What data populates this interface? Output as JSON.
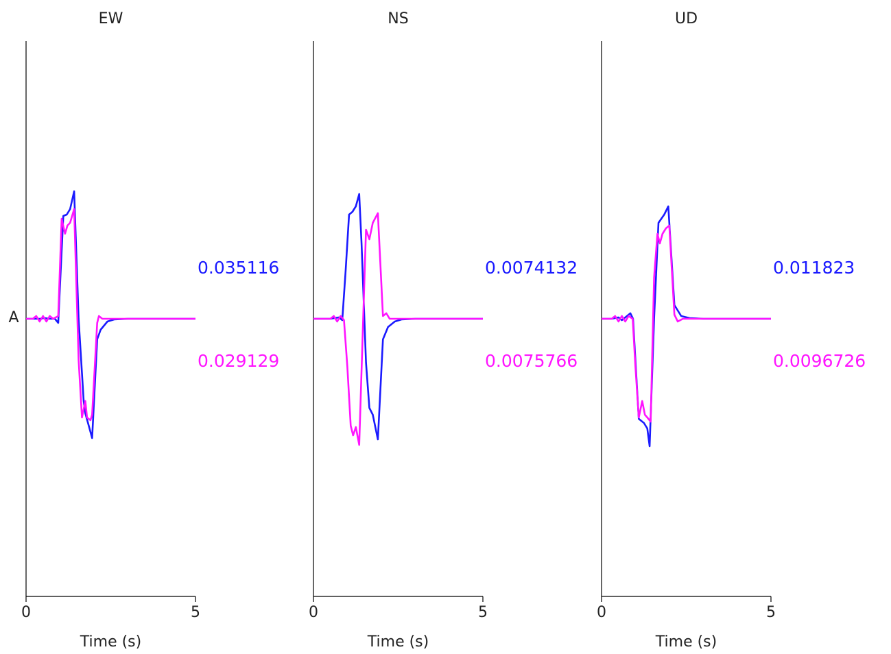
{
  "colors": {
    "series_a": "#1a1aff",
    "series_b": "#ff14ff",
    "axis": "#000000",
    "text": "#222222"
  },
  "station_label": "A",
  "chart_data": [
    {
      "type": "line",
      "title": "EW",
      "xlabel": "Time (s)",
      "ylabel": "",
      "xlim": [
        0,
        5
      ],
      "ylim": [
        -1,
        1
      ],
      "x_ticks": [
        "0",
        "5"
      ],
      "grid": false,
      "annotations": [
        "0.035116",
        "0.029129"
      ],
      "series": [
        {
          "color": "#1a1aff",
          "x": [
            0,
            0.2,
            0.4,
            0.55,
            0.7,
            0.85,
            0.95,
            1.1,
            1.2,
            1.3,
            1.42,
            1.55,
            1.7,
            1.75,
            1.85,
            1.95,
            2.1,
            2.2,
            2.4,
            2.6,
            3,
            5
          ],
          "y": [
            0,
            0,
            0,
            0.005,
            0,
            0,
            -0.03,
            0.75,
            0.76,
            0.8,
            0.93,
            0,
            -0.6,
            -0.69,
            -0.78,
            -0.87,
            -0.15,
            -0.08,
            -0.02,
            -0.005,
            0,
            0
          ]
        },
        {
          "color": "#ff14ff",
          "x": [
            0,
            0.2,
            0.3,
            0.4,
            0.5,
            0.6,
            0.7,
            0.8,
            0.95,
            1.05,
            1.15,
            1.22,
            1.3,
            1.42,
            1.55,
            1.65,
            1.75,
            1.8,
            1.9,
            1.95,
            2.1,
            2.15,
            2.25,
            2.4,
            3,
            5
          ],
          "y": [
            0,
            0,
            0.02,
            -0.02,
            0.02,
            -0.02,
            0.02,
            0,
            0.02,
            0.73,
            0.62,
            0.68,
            0.7,
            0.8,
            -0.3,
            -0.72,
            -0.6,
            -0.72,
            -0.74,
            -0.7,
            -0.03,
            0.02,
            0,
            0,
            0,
            0
          ]
        }
      ]
    },
    {
      "type": "line",
      "title": "NS",
      "xlabel": "Time (s)",
      "ylabel": "",
      "xlim": [
        0,
        5
      ],
      "ylim": [
        -1,
        1
      ],
      "x_ticks": [
        "0",
        "5"
      ],
      "grid": false,
      "annotations": [
        "0.0074132",
        "0.0075766"
      ],
      "series": [
        {
          "color": "#1a1aff",
          "x": [
            0,
            0.5,
            0.75,
            0.85,
            0.95,
            1.05,
            1.15,
            1.25,
            1.35,
            1.42,
            1.55,
            1.65,
            1.75,
            1.9,
            2.05,
            2.2,
            2.4,
            2.6,
            3,
            5
          ],
          "y": [
            0,
            0,
            0.01,
            -0.01,
            0.35,
            0.76,
            0.78,
            0.82,
            0.91,
            0.55,
            -0.32,
            -0.65,
            -0.7,
            -0.88,
            -0.15,
            -0.06,
            -0.02,
            -0.005,
            0,
            0
          ]
        },
        {
          "color": "#ff14ff",
          "x": [
            0,
            0.5,
            0.6,
            0.7,
            0.8,
            0.9,
            1.0,
            1.1,
            1.17,
            1.25,
            1.35,
            1.43,
            1.55,
            1.65,
            1.75,
            1.9,
            2.05,
            2.15,
            2.25,
            2.35,
            3,
            5
          ],
          "y": [
            0,
            0,
            0.02,
            -0.02,
            0.02,
            -0.01,
            -0.35,
            -0.78,
            -0.85,
            -0.79,
            -0.92,
            -0.3,
            0.65,
            0.58,
            0.7,
            0.77,
            0.02,
            0.04,
            0,
            0,
            0,
            0
          ]
        }
      ]
    },
    {
      "type": "line",
      "title": "UD",
      "xlabel": "Time (s)",
      "ylabel": "",
      "xlim": [
        0,
        5
      ],
      "ylim": [
        -1,
        1
      ],
      "x_ticks": [
        "0",
        "5"
      ],
      "grid": false,
      "annotations": [
        "0.011823",
        "0.0096726"
      ],
      "series": [
        {
          "color": "#1a1aff",
          "x": [
            0,
            0.3,
            0.5,
            0.6,
            0.7,
            0.85,
            0.93,
            1.1,
            1.25,
            1.35,
            1.42,
            1.55,
            1.68,
            1.85,
            1.97,
            2.15,
            2.35,
            2.6,
            3,
            5
          ],
          "y": [
            0,
            0,
            0.01,
            -0.01,
            0.01,
            0.04,
            0,
            -0.73,
            -0.76,
            -0.8,
            -0.93,
            0,
            0.7,
            0.76,
            0.82,
            0.1,
            0.02,
            0.005,
            0,
            0
          ]
        },
        {
          "color": "#ff14ff",
          "x": [
            0,
            0.3,
            0.4,
            0.5,
            0.6,
            0.7,
            0.8,
            0.92,
            1.0,
            1.1,
            1.2,
            1.28,
            1.35,
            1.45,
            1.55,
            1.65,
            1.72,
            1.8,
            1.9,
            2.0,
            2.15,
            2.25,
            2.4,
            3,
            5
          ],
          "y": [
            0,
            0,
            0.02,
            -0.02,
            0.02,
            -0.02,
            0.02,
            0,
            -0.35,
            -0.72,
            -0.6,
            -0.7,
            -0.72,
            -0.75,
            0.3,
            0.62,
            0.55,
            0.62,
            0.66,
            0.68,
            0.03,
            -0.02,
            0,
            0,
            0
          ]
        }
      ]
    }
  ]
}
